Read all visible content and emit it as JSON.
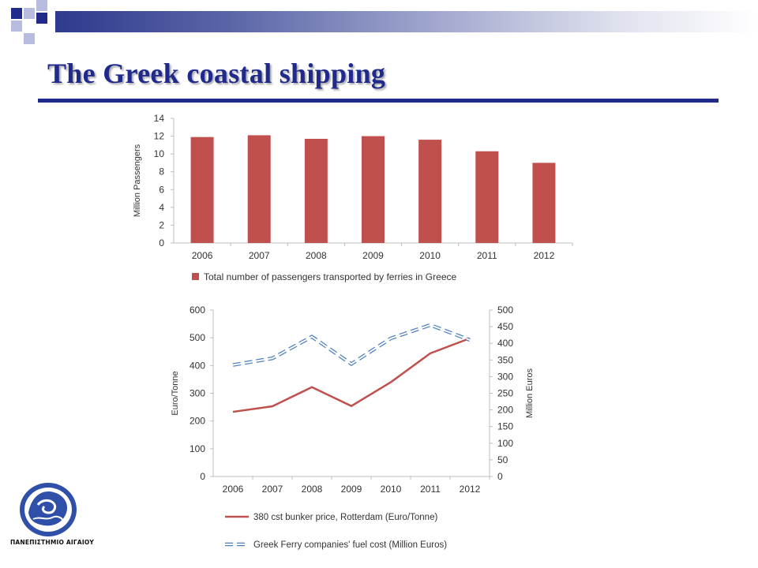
{
  "slide": {
    "title": "The Greek coastal shipping",
    "colors": {
      "title": "#1f2a8a",
      "bar": "#c0504d",
      "line_red": "#c0504d",
      "line_blue": "#4f81bd",
      "accent_square_dark": "#1f2a8a",
      "accent_square_light": "#b8bde0"
    }
  },
  "logo": {
    "caption": "ΠΑΝΕΠΙΣΤΗΜΙΟ ΑΙΓΑΙΟΥ",
    "icon": "university-seal-icon"
  },
  "chart_data": [
    {
      "type": "bar",
      "categories": [
        "2006",
        "2007",
        "2008",
        "2009",
        "2010",
        "2011",
        "2012"
      ],
      "series": [
        {
          "name": "Total number of passengers transported by ferries in Greece",
          "values": [
            11.9,
            12.1,
            11.7,
            12.0,
            11.6,
            10.3,
            9.0
          ]
        }
      ],
      "ylabel": "Million Passengers",
      "ylim": [
        0,
        14
      ],
      "yticks": [
        "0",
        "2",
        "4",
        "6",
        "8",
        "10",
        "12",
        "14"
      ],
      "grid": false,
      "legend": "bottom"
    },
    {
      "type": "line",
      "x": [
        "2006",
        "2007",
        "2008",
        "2009",
        "2010",
        "2011",
        "2012"
      ],
      "series": [
        {
          "name": "380 cst bunker price, Rotterdam (Euro/Tonne)",
          "axis": "left",
          "style": "solid",
          "values": [
            233,
            253,
            322,
            254,
            340,
            444,
            498
          ]
        },
        {
          "name": "Greek Ferry companies' fuel cost (Million Euros)",
          "axis": "right",
          "style": "dashed",
          "values": [
            335,
            355,
            420,
            338,
            415,
            455,
            410
          ]
        }
      ],
      "ylabel_left": "Euro/Tonne",
      "ylabel_right": "Million Euros",
      "ylim_left": [
        0,
        600
      ],
      "ylim_right": [
        0,
        500
      ],
      "yticks_left": [
        "0",
        "100",
        "200",
        "300",
        "400",
        "500",
        "600"
      ],
      "yticks_right": [
        "0",
        "50",
        "100",
        "150",
        "200",
        "250",
        "300",
        "350",
        "400",
        "450",
        "500"
      ],
      "grid": false,
      "legend": "bottom"
    }
  ]
}
